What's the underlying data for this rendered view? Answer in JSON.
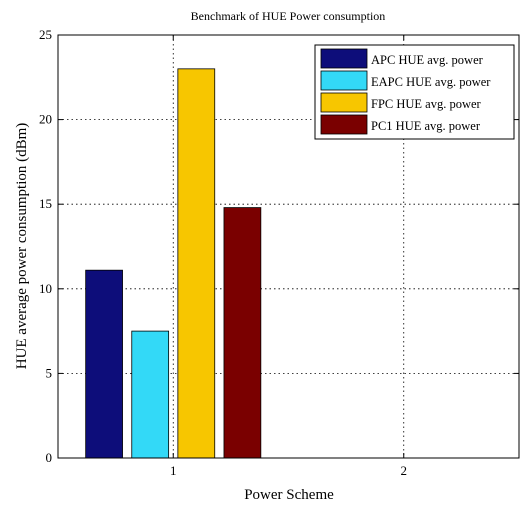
{
  "chart_data": {
    "type": "bar",
    "title": "Benchmark of HUE Power consumption",
    "xlabel": "Power Scheme",
    "ylabel": "HUE average power consumption (dBm)",
    "categories": [
      "1",
      "2"
    ],
    "ylim": [
      0,
      25
    ],
    "xlim": [
      0.5,
      2.5
    ],
    "yticks": [
      0,
      5,
      10,
      15,
      20,
      25
    ],
    "grid": true,
    "legend_position": "top-right",
    "series": [
      {
        "name": "APC HUE avg. power",
        "color": "#0d0d7a",
        "values": [
          11.1,
          null
        ]
      },
      {
        "name": "EAPC HUE avg. power",
        "color": "#33d9f7",
        "values": [
          7.5,
          null
        ]
      },
      {
        "name": "FPC HUE avg. power",
        "color": "#f7c600",
        "values": [
          23.0,
          null
        ]
      },
      {
        "name": "PC1 HUE avg. power",
        "color": "#7a0000",
        "values": [
          14.8,
          null
        ]
      }
    ]
  }
}
